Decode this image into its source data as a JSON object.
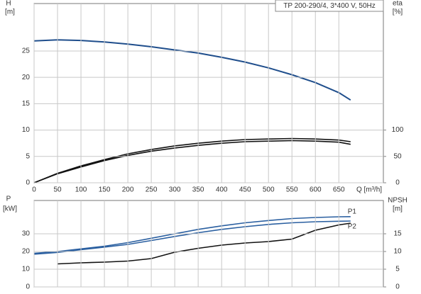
{
  "title": "TP 200-290/4, 3*400 V, 50Hz",
  "chart_data": [
    {
      "type": "line",
      "ylabel": "H",
      "yunit": "[m]",
      "y2label": "eta",
      "y2unit": "[%]",
      "xlabel": "Q [m³/h]",
      "x": [
        0,
        50,
        100,
        150,
        200,
        250,
        300,
        350,
        400,
        450,
        500,
        550,
        600,
        650,
        675
      ],
      "xlim": [
        0,
        745
      ],
      "xticks": [
        0,
        50,
        100,
        150,
        200,
        250,
        300,
        350,
        400,
        450,
        500,
        550,
        600,
        650
      ],
      "ylim": [
        0,
        34
      ],
      "yticks": [
        0,
        5,
        10,
        15,
        20,
        25
      ],
      "y2lim": [
        0,
        340
      ],
      "y2ticks": [
        0,
        50,
        100
      ],
      "grid": true,
      "series": [
        {
          "color": "#1f4e8c",
          "values": [
            26.9,
            27.1,
            27.0,
            26.7,
            26.3,
            25.8,
            25.2,
            24.6,
            23.8,
            22.9,
            21.8,
            20.5,
            19.0,
            17.1,
            15.7
          ]
        },
        {
          "color": "#111111",
          "axis": "y2",
          "values": [
            0,
            18,
            32,
            44,
            55,
            63,
            70,
            75,
            79,
            82,
            83,
            84,
            83,
            81,
            78
          ]
        },
        {
          "color": "#111111",
          "axis": "y2",
          "values": [
            0,
            17,
            30,
            42,
            52,
            60,
            66,
            71,
            75,
            78,
            79,
            80,
            79,
            77,
            73
          ]
        }
      ]
    },
    {
      "type": "line",
      "ylabel": "P",
      "yunit": "[kW]",
      "y2label": "NPSH",
      "y2unit": "[m]",
      "x": [
        0,
        50,
        100,
        150,
        200,
        250,
        300,
        350,
        400,
        450,
        500,
        550,
        600,
        650,
        675
      ],
      "xlim": [
        0,
        745
      ],
      "ylim": [
        0,
        48.8
      ],
      "yticks": [
        0,
        10,
        20,
        30
      ],
      "y2lim": [
        0,
        24.4
      ],
      "y2ticks": [
        0,
        5,
        10,
        15
      ],
      "grid": true,
      "series": [
        {
          "name": "P1",
          "color": "#2a5fa0",
          "values": [
            19,
            20,
            21.5,
            23,
            25,
            27.5,
            30,
            32.5,
            34.5,
            36.2,
            37.5,
            38.6,
            39.2,
            39.6,
            39.7
          ]
        },
        {
          "name": "P2",
          "color": "#2a5fa0",
          "values": [
            18.5,
            19.5,
            21,
            22.5,
            24,
            26.2,
            28.5,
            30.6,
            32.5,
            34,
            35.3,
            36.2,
            36.8,
            37.1,
            37.2
          ]
        },
        {
          "color": "#111111",
          "axis": "y2",
          "values": [
            null,
            6.5,
            6.8,
            7,
            7.3,
            8,
            9.8,
            10.9,
            11.8,
            12.4,
            12.8,
            13.5,
            16,
            17.5,
            18
          ]
        }
      ]
    }
  ]
}
